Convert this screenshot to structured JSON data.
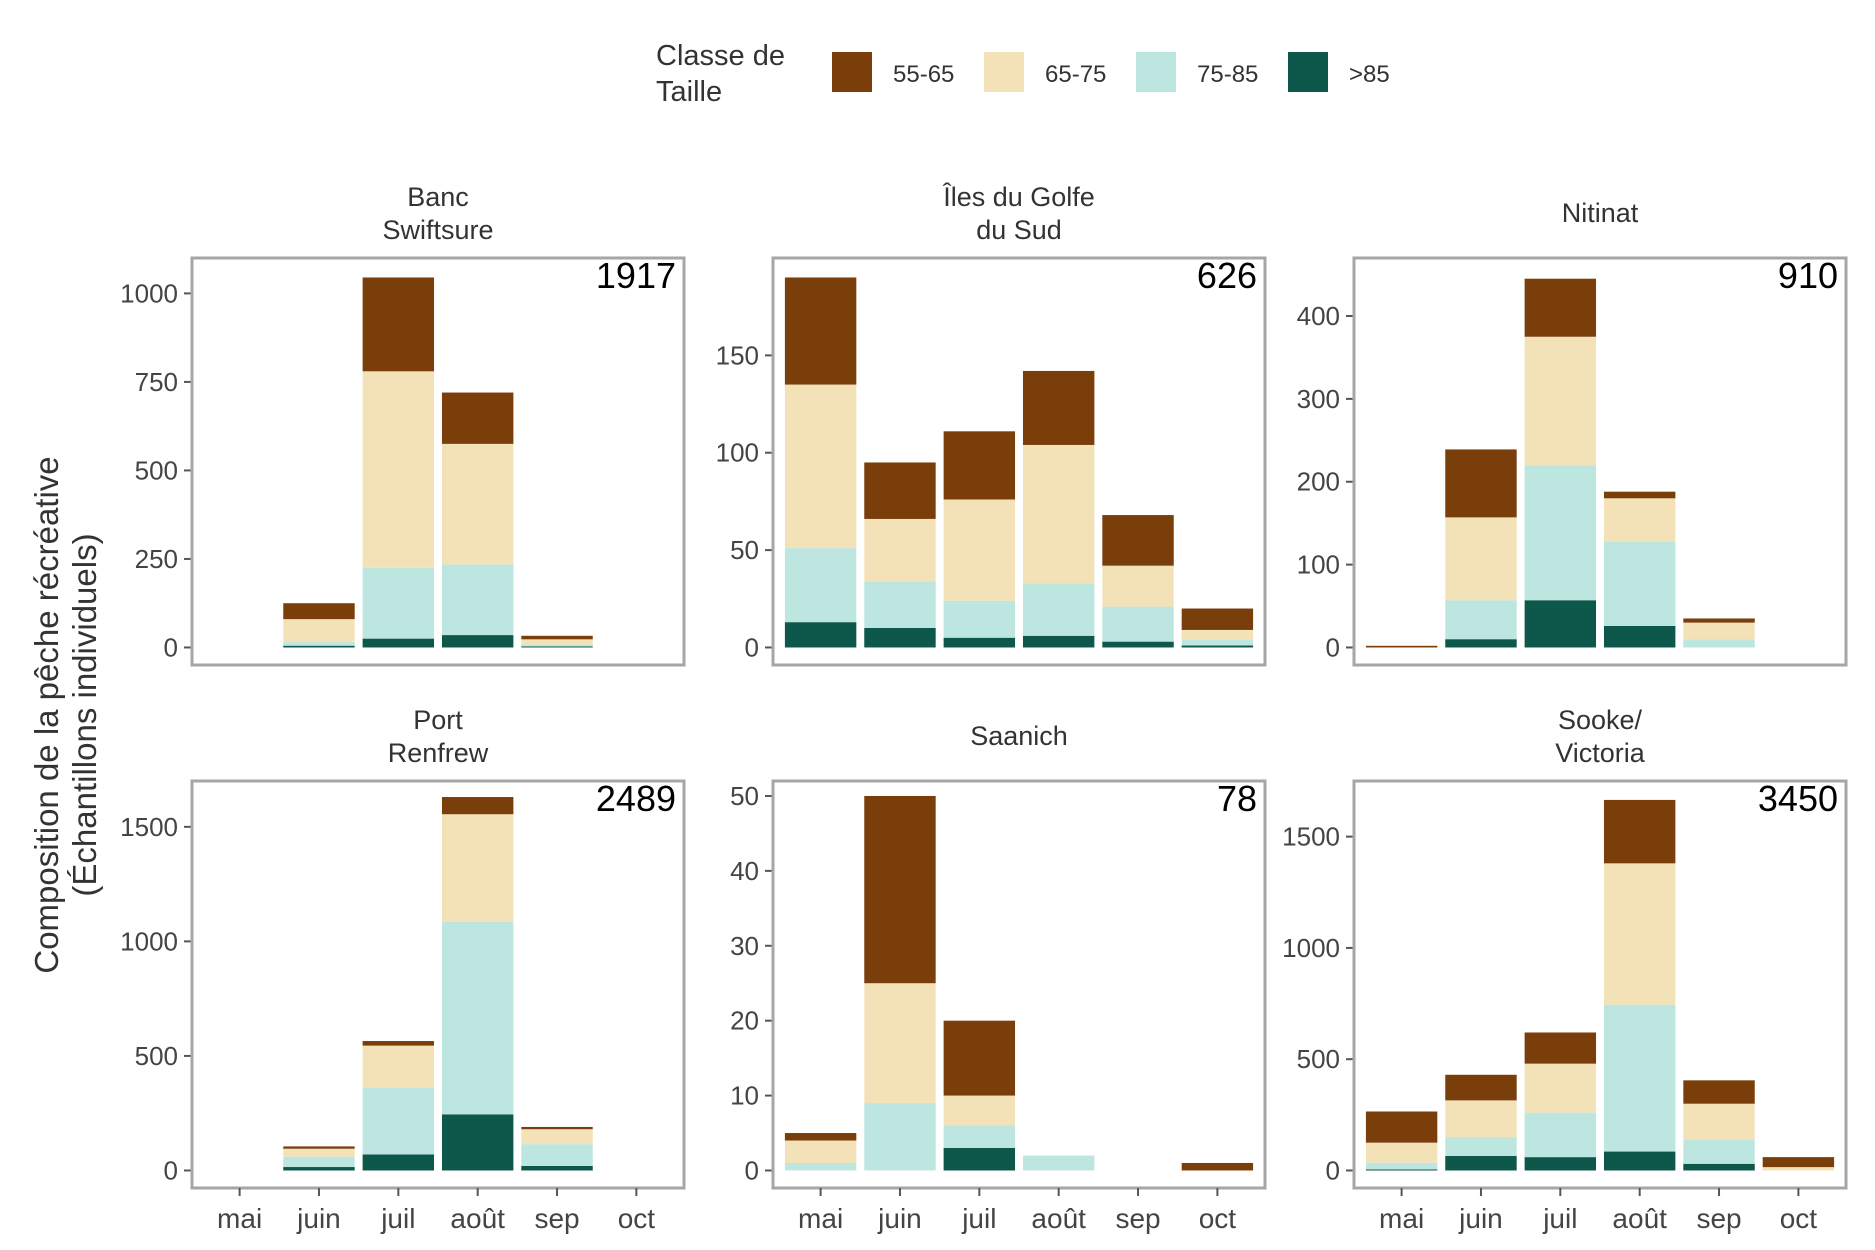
{
  "ylabel": [
    "Composition de la pêche récréative",
    "(Échantillons individuels)"
  ],
  "legend": {
    "title": [
      "Classe de",
      "Taille"
    ],
    "items": [
      {
        "label": "55-65",
        "color": "#7a3e0b"
      },
      {
        "label": "65-75",
        "color": "#f3e2b7"
      },
      {
        "label": "75-85",
        "color": "#bde6e0"
      },
      {
        "label": ">85",
        "color": "#0d574b"
      }
    ]
  },
  "chart_data": [
    {
      "type": "bar",
      "stacked": true,
      "title": [
        "Banc",
        "Swiftsure"
      ],
      "total": "1917",
      "categories": [
        "mai",
        "juin",
        "juil",
        "août",
        "sep",
        "oct"
      ],
      "ylim": [
        0,
        1100
      ],
      "yticks": [
        0,
        250,
        500,
        750,
        1000
      ],
      "series": [
        {
          "name": ">85",
          "values": [
            0,
            5,
            25,
            35,
            3,
            0
          ]
        },
        {
          "name": "75-85",
          "values": [
            0,
            10,
            200,
            200,
            5,
            0
          ]
        },
        {
          "name": "65-75",
          "values": [
            0,
            65,
            555,
            340,
            15,
            0
          ]
        },
        {
          "name": "55-65",
          "values": [
            0,
            45,
            265,
            145,
            10,
            0
          ]
        }
      ]
    },
    {
      "type": "bar",
      "stacked": true,
      "title": [
        "Îles du Golfe",
        "du Sud"
      ],
      "total": "626",
      "categories": [
        "mai",
        "juin",
        "juil",
        "août",
        "sep",
        "oct"
      ],
      "ylim": [
        0,
        200
      ],
      "yticks": [
        0,
        50,
        100,
        150
      ],
      "series": [
        {
          "name": ">85",
          "values": [
            13,
            10,
            5,
            6,
            3,
            1
          ]
        },
        {
          "name": "75-85",
          "values": [
            38,
            24,
            19,
            27,
            18,
            3
          ]
        },
        {
          "name": "65-75",
          "values": [
            84,
            32,
            52,
            71,
            21,
            5
          ]
        },
        {
          "name": "55-65",
          "values": [
            55,
            29,
            35,
            38,
            26,
            11
          ]
        }
      ]
    },
    {
      "type": "bar",
      "stacked": true,
      "title": [
        "Nitinat"
      ],
      "total": "910",
      "categories": [
        "mai",
        "juin",
        "juil",
        "août",
        "sep",
        "oct"
      ],
      "ylim": [
        0,
        470
      ],
      "yticks": [
        0,
        100,
        200,
        300,
        400
      ],
      "series": [
        {
          "name": ">85",
          "values": [
            0,
            10,
            57,
            26,
            0,
            0
          ]
        },
        {
          "name": "75-85",
          "values": [
            0,
            47,
            163,
            102,
            10,
            0
          ]
        },
        {
          "name": "65-75",
          "values": [
            0,
            100,
            155,
            52,
            20,
            0
          ]
        },
        {
          "name": "55-65",
          "values": [
            2,
            82,
            70,
            8,
            5,
            0
          ]
        }
      ]
    },
    {
      "type": "bar",
      "stacked": true,
      "title": [
        "Port",
        "Renfrew"
      ],
      "total": "2489",
      "categories": [
        "mai",
        "juin",
        "juil",
        "août",
        "sep",
        "oct"
      ],
      "ylim": [
        0,
        1700
      ],
      "yticks": [
        0,
        500,
        1000,
        1500
      ],
      "series": [
        {
          "name": ">85",
          "values": [
            0,
            15,
            70,
            245,
            20,
            0
          ]
        },
        {
          "name": "75-85",
          "values": [
            0,
            45,
            290,
            840,
            95,
            0
          ]
        },
        {
          "name": "65-75",
          "values": [
            0,
            35,
            185,
            470,
            65,
            0
          ]
        },
        {
          "name": "55-65",
          "values": [
            0,
            10,
            20,
            75,
            10,
            0
          ]
        }
      ]
    },
    {
      "type": "bar",
      "stacked": true,
      "title": [
        "Saanich"
      ],
      "total": "78",
      "categories": [
        "mai",
        "juin",
        "juil",
        "août",
        "sep",
        "oct"
      ],
      "ylim": [
        0,
        52
      ],
      "yticks": [
        0,
        10,
        20,
        30,
        40,
        50
      ],
      "series": [
        {
          "name": ">85",
          "values": [
            0,
            0,
            3,
            0,
            0,
            0
          ]
        },
        {
          "name": "75-85",
          "values": [
            1,
            9,
            3,
            2,
            0,
            0
          ]
        },
        {
          "name": "65-75",
          "values": [
            3,
            16,
            4,
            0,
            0,
            0
          ]
        },
        {
          "name": "55-65",
          "values": [
            1,
            25,
            10,
            0,
            0,
            1
          ]
        }
      ]
    },
    {
      "type": "bar",
      "stacked": true,
      "title": [
        "Sooke/",
        "Victoria"
      ],
      "total": "3450",
      "categories": [
        "mai",
        "juin",
        "juil",
        "août",
        "sep",
        "oct"
      ],
      "ylim": [
        0,
        1750
      ],
      "yticks": [
        0,
        500,
        1000,
        1500
      ],
      "series": [
        {
          "name": ">85",
          "values": [
            5,
            65,
            60,
            85,
            30,
            0
          ]
        },
        {
          "name": "75-85",
          "values": [
            30,
            85,
            200,
            660,
            110,
            0
          ]
        },
        {
          "name": "65-75",
          "values": [
            90,
            165,
            220,
            635,
            160,
            15
          ]
        },
        {
          "name": "55-65",
          "values": [
            140,
            115,
            140,
            285,
            105,
            45
          ]
        }
      ]
    }
  ]
}
